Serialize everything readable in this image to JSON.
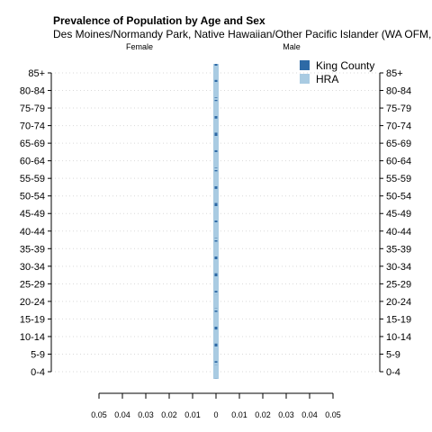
{
  "chart_data": {
    "type": "bar",
    "orientation": "horizontal-pyramid",
    "title": "Prevalence of Population by Age and Sex",
    "subtitle": "Des Moines/Normandy Park, Native Hawaiian/Other Pacific Islander (WA OFM,",
    "left_label": "Female",
    "right_label": "Male",
    "categories": [
      "0-4",
      "5-9",
      "10-14",
      "15-19",
      "20-24",
      "25-29",
      "30-34",
      "35-39",
      "40-44",
      "45-49",
      "50-54",
      "55-59",
      "60-64",
      "65-69",
      "70-74",
      "75-79",
      "80-84",
      "85+"
    ],
    "x_ticks": [
      "0.05",
      "0.04",
      "0.03",
      "0.02",
      "0.01",
      "0",
      "0.01",
      "0.02",
      "0.03",
      "0.04",
      "0.05"
    ],
    "xlim": [
      -0.05,
      0.05
    ],
    "grid": true,
    "legend_position": "top-right",
    "colors": {
      "king_county": "#2e6aa6",
      "hra": "#a9cbe2",
      "axis": "#000000",
      "grid": "#d9d9d9"
    },
    "series": [
      {
        "name": "King County",
        "side": "female",
        "values": [
          0,
          0,
          0,
          0,
          0,
          0,
          0,
          0,
          0,
          0,
          0,
          0,
          0,
          0,
          0,
          0,
          0,
          0
        ]
      },
      {
        "name": "King County",
        "side": "male",
        "values": [
          0,
          0,
          0,
          0,
          0,
          0,
          0,
          0,
          0,
          0,
          0,
          0,
          0,
          0,
          0,
          0,
          0,
          0
        ]
      },
      {
        "name": "HRA",
        "side": "female",
        "values": [
          0,
          0,
          0,
          0,
          0,
          0,
          0,
          0,
          0,
          0,
          0,
          0,
          0,
          0,
          0,
          0,
          0,
          0
        ]
      },
      {
        "name": "HRA",
        "side": "male",
        "values": [
          0,
          0,
          0,
          0,
          0,
          0,
          0,
          0,
          0,
          0,
          0,
          0,
          0,
          0,
          0,
          0,
          0,
          0
        ]
      }
    ],
    "legend": [
      "King County",
      "HRA"
    ]
  }
}
